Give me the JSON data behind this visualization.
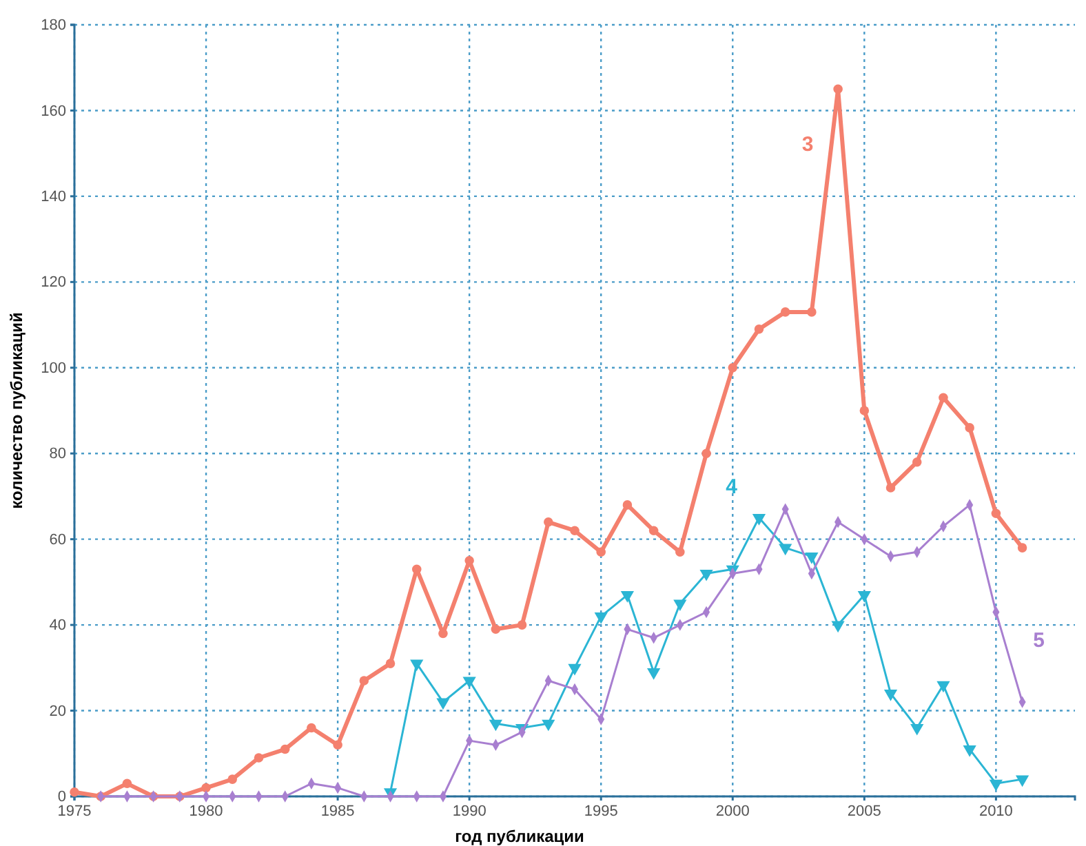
{
  "chart_data": {
    "type": "line",
    "xlabel": "год публикации",
    "ylabel": "количество публикаций",
    "xlim": [
      1975,
      2013
    ],
    "xticks": [
      1975,
      1980,
      1985,
      1990,
      1995,
      2000,
      2005,
      2010
    ],
    "ylim": [
      0,
      180
    ],
    "yticks": [
      0,
      20,
      40,
      60,
      80,
      100,
      120,
      140,
      160,
      180
    ],
    "grid": true,
    "line_style": "solid",
    "series": [
      {
        "name": "3",
        "color": "#f4806e",
        "marker": "circle",
        "x": [
          1975,
          1976,
          1977,
          1978,
          1979,
          1980,
          1981,
          1982,
          1983,
          1984,
          1985,
          1986,
          1987,
          1988,
          1989,
          1990,
          1991,
          1992,
          1993,
          1994,
          1995,
          1996,
          1997,
          1998,
          1999,
          2000,
          2001,
          2002,
          2003,
          2004,
          2005,
          2006,
          2007,
          2008,
          2009,
          2010,
          2011
        ],
        "values": [
          1,
          0,
          3,
          0,
          0,
          2,
          4,
          9,
          11,
          16,
          12,
          27,
          31,
          53,
          38,
          55,
          39,
          40,
          64,
          62,
          57,
          68,
          62,
          57,
          80,
          100,
          109,
          113,
          113,
          165,
          90,
          72,
          78,
          93,
          86,
          66,
          58
        ]
      },
      {
        "name": "4",
        "color": "#2bb5d4",
        "marker": "triangle",
        "x": [
          1987,
          1988,
          1989,
          1990,
          1991,
          1992,
          1993,
          1994,
          1995,
          1996,
          1997,
          1998,
          1999,
          2000,
          2001,
          2002,
          2003,
          2004,
          2005,
          2006,
          2007,
          2008,
          2009,
          2010,
          2011
        ],
        "values": [
          1,
          31,
          22,
          27,
          17,
          16,
          17,
          30,
          42,
          47,
          29,
          45,
          52,
          53,
          65,
          58,
          56,
          40,
          47,
          24,
          16,
          26,
          11,
          3,
          4
        ]
      },
      {
        "name": "5",
        "color": "#a87fd0",
        "marker": "diamond",
        "x": [
          1976,
          1977,
          1978,
          1979,
          1980,
          1981,
          1982,
          1983,
          1984,
          1985,
          1986,
          1987,
          1988,
          1989,
          1990,
          1991,
          1992,
          1993,
          1994,
          1995,
          1996,
          1997,
          1998,
          1999,
          2000,
          2001,
          2002,
          2003,
          2004,
          2005,
          2006,
          2007,
          2008,
          2009,
          2010,
          2011
        ],
        "values": [
          0,
          0,
          0,
          0,
          0,
          0,
          0,
          0,
          3,
          2,
          0,
          0,
          0,
          0,
          13,
          12,
          15,
          27,
          25,
          18,
          39,
          37,
          40,
          43,
          52,
          53,
          67,
          52,
          64,
          60,
          56,
          57,
          63,
          68,
          43,
          22
        ]
      }
    ]
  }
}
